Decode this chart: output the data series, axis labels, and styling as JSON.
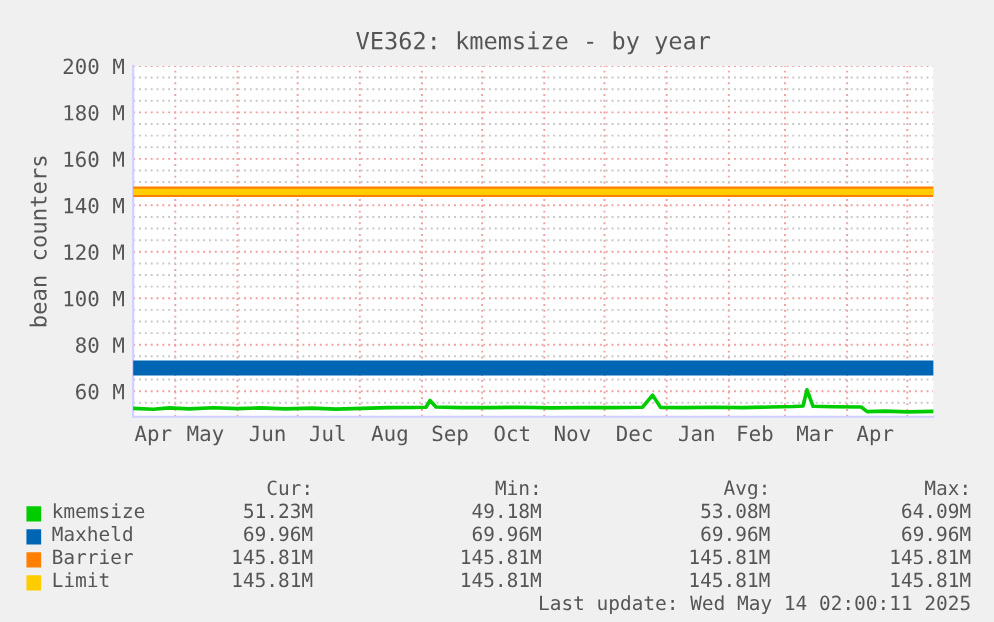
{
  "chart_data": {
    "type": "line",
    "title": "VE362: kmemsize - by year",
    "ylabel": "bean counters",
    "xlim": [
      "2024-04-10",
      "2025-05-14"
    ],
    "ylim": [
      49,
      200
    ],
    "xticks": [
      {
        "value": "2024-04-20",
        "label": "Apr"
      },
      {
        "value": "2024-05-16",
        "label": "May"
      },
      {
        "value": "2024-06-16",
        "label": "Jun"
      },
      {
        "value": "2024-07-16",
        "label": "Jul"
      },
      {
        "value": "2024-08-16",
        "label": "Aug"
      },
      {
        "value": "2024-09-15",
        "label": "Sep"
      },
      {
        "value": "2024-10-16",
        "label": "Oct"
      },
      {
        "value": "2024-11-15",
        "label": "Nov"
      },
      {
        "value": "2024-12-16",
        "label": "Dec"
      },
      {
        "value": "2025-01-16",
        "label": "Jan"
      },
      {
        "value": "2025-02-14",
        "label": "Feb"
      },
      {
        "value": "2025-03-16",
        "label": "Mar"
      },
      {
        "value": "2025-04-15",
        "label": "Apr"
      },
      {
        "value": "2024-05-01",
        "label": null
      },
      {
        "value": "2024-06-01",
        "label": null
      },
      {
        "value": "2024-07-01",
        "label": null
      },
      {
        "value": "2024-08-01",
        "label": null
      },
      {
        "value": "2024-09-01",
        "label": null
      },
      {
        "value": "2024-10-01",
        "label": null
      },
      {
        "value": "2024-11-01",
        "label": null
      },
      {
        "value": "2024-12-01",
        "label": null
      },
      {
        "value": "2025-01-01",
        "label": null
      },
      {
        "value": "2025-02-01",
        "label": null
      },
      {
        "value": "2025-03-01",
        "label": null
      },
      {
        "value": "2025-04-01",
        "label": null
      },
      {
        "value": "2025-05-01",
        "label": null
      }
    ],
    "yticks": [
      {
        "value": 60,
        "label": "60 M"
      },
      {
        "value": 80,
        "label": "80 M"
      },
      {
        "value": 100,
        "label": "100 M"
      },
      {
        "value": 120,
        "label": "120 M"
      },
      {
        "value": 140,
        "label": "140 M"
      },
      {
        "value": 160,
        "label": "160 M"
      },
      {
        "value": 180,
        "label": "180 M"
      },
      {
        "value": 200,
        "label": "200 M"
      },
      {
        "value": 55,
        "label": null
      },
      {
        "value": 65,
        "label": null
      },
      {
        "value": 70,
        "label": null
      },
      {
        "value": 75,
        "label": null
      },
      {
        "value": 85,
        "label": null
      },
      {
        "value": 90,
        "label": null
      },
      {
        "value": 95,
        "label": null
      },
      {
        "value": 105,
        "label": null
      },
      {
        "value": 110,
        "label": null
      },
      {
        "value": 115,
        "label": null
      },
      {
        "value": 125,
        "label": null
      },
      {
        "value": 130,
        "label": null
      },
      {
        "value": 135,
        "label": null
      },
      {
        "value": 145,
        "label": null
      },
      {
        "value": 150,
        "label": null
      },
      {
        "value": 155,
        "label": null
      },
      {
        "value": 165,
        "label": null
      },
      {
        "value": 170,
        "label": null
      },
      {
        "value": 175,
        "label": null
      },
      {
        "value": 185,
        "label": null
      },
      {
        "value": 190,
        "label": null
      },
      {
        "value": 195,
        "label": null
      }
    ],
    "grid": true,
    "legend": "bottom left",
    "marker": "none",
    "line_style": "solid",
    "series": [
      {
        "name": "kmemsize",
        "color": "#00cc00",
        "x": [
          "2024-04-10",
          "2024-04-20",
          "2024-04-28",
          "2024-05-08",
          "2024-05-20",
          "2024-06-01",
          "2024-06-12",
          "2024-06-25",
          "2024-07-08",
          "2024-07-20",
          "2024-08-02",
          "2024-08-15",
          "2024-08-28",
          "2024-09-03",
          "2024-09-05",
          "2024-09-08",
          "2024-09-20",
          "2024-10-05",
          "2024-10-20",
          "2024-11-05",
          "2024-11-20",
          "2024-12-05",
          "2024-12-20",
          "2024-12-25",
          "2024-12-29",
          "2025-01-10",
          "2025-01-25",
          "2025-02-08",
          "2025-02-22",
          "2025-03-05",
          "2025-03-10",
          "2025-03-12",
          "2025-03-15",
          "2025-03-25",
          "2025-04-08",
          "2025-04-11",
          "2025-04-20",
          "2025-05-01",
          "2025-05-14"
        ],
        "values": [
          52.6,
          52.2,
          52.8,
          52.4,
          52.9,
          52.5,
          52.8,
          52.4,
          52.7,
          52.3,
          52.6,
          52.9,
          53.0,
          53.1,
          56,
          53.2,
          52.9,
          52.9,
          53.1,
          52.8,
          53.0,
          52.9,
          53.1,
          58.3,
          53.0,
          52.9,
          53.1,
          52.9,
          53.2,
          53.4,
          53.6,
          60.6,
          53.5,
          53.3,
          53.2,
          51.2,
          51.4,
          51.1,
          51.3
        ]
      },
      {
        "name": "Maxheld",
        "color": "#0066b3",
        "x": [
          "2024-04-10",
          "2025-05-14"
        ],
        "values": [
          69.96,
          69.96
        ]
      },
      {
        "name": "Barrier",
        "color": "#ff8000",
        "x": [
          "2024-04-10",
          "2025-05-14"
        ],
        "values": [
          145.81,
          145.81
        ]
      },
      {
        "name": "Limit",
        "color": "#ffcc00",
        "x": [
          "2024-04-10",
          "2025-05-14"
        ],
        "values": [
          145.81,
          145.81
        ]
      }
    ],
    "annotations": [
      "Cur:",
      "Min:",
      "Avg:",
      "Max:",
      "51.23M",
      "49.18M",
      "53.08M",
      "64.09M",
      "69.96M",
      "69.96M",
      "69.96M",
      "69.96M",
      "145.81M",
      "145.81M",
      "145.81M",
      "145.81M",
      "145.81M",
      "145.81M",
      "145.81M",
      "145.81M",
      "Last update: Wed May 14 02:00:11 2025"
    ]
  }
}
